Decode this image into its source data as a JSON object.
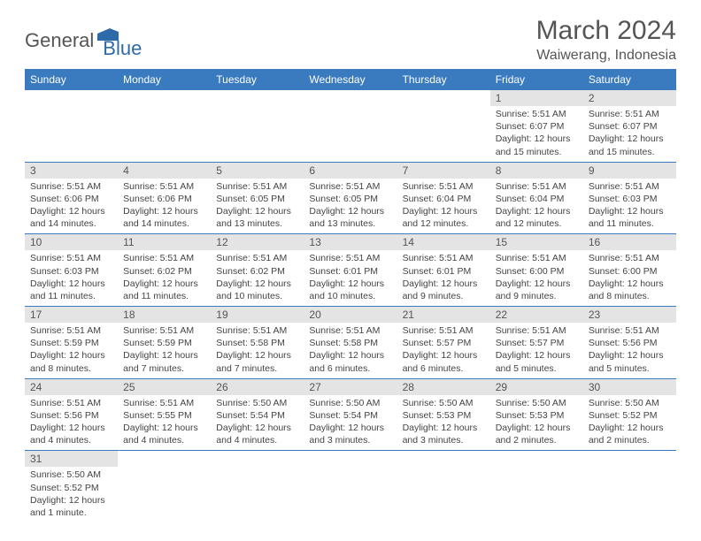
{
  "brand": {
    "general": "General",
    "blue": "Blue",
    "shape_color": "#2f6aa8"
  },
  "title": "March 2024",
  "location": "Waiwerang, Indonesia",
  "colors": {
    "header_bg": "#3a7bbf",
    "header_text": "#ffffff",
    "daynum_bg": "#e4e4e4",
    "row_border": "#3a7bbf",
    "page_bg": "#ffffff",
    "body_text": "#444444",
    "title_text": "#555555"
  },
  "weekdays": [
    "Sunday",
    "Monday",
    "Tuesday",
    "Wednesday",
    "Thursday",
    "Friday",
    "Saturday"
  ],
  "weeks": [
    [
      null,
      null,
      null,
      null,
      null,
      {
        "n": "1",
        "sr": "Sunrise: 5:51 AM",
        "ss": "Sunset: 6:07 PM",
        "dl1": "Daylight: 12 hours",
        "dl2": "and 15 minutes."
      },
      {
        "n": "2",
        "sr": "Sunrise: 5:51 AM",
        "ss": "Sunset: 6:07 PM",
        "dl1": "Daylight: 12 hours",
        "dl2": "and 15 minutes."
      }
    ],
    [
      {
        "n": "3",
        "sr": "Sunrise: 5:51 AM",
        "ss": "Sunset: 6:06 PM",
        "dl1": "Daylight: 12 hours",
        "dl2": "and 14 minutes."
      },
      {
        "n": "4",
        "sr": "Sunrise: 5:51 AM",
        "ss": "Sunset: 6:06 PM",
        "dl1": "Daylight: 12 hours",
        "dl2": "and 14 minutes."
      },
      {
        "n": "5",
        "sr": "Sunrise: 5:51 AM",
        "ss": "Sunset: 6:05 PM",
        "dl1": "Daylight: 12 hours",
        "dl2": "and 13 minutes."
      },
      {
        "n": "6",
        "sr": "Sunrise: 5:51 AM",
        "ss": "Sunset: 6:05 PM",
        "dl1": "Daylight: 12 hours",
        "dl2": "and 13 minutes."
      },
      {
        "n": "7",
        "sr": "Sunrise: 5:51 AM",
        "ss": "Sunset: 6:04 PM",
        "dl1": "Daylight: 12 hours",
        "dl2": "and 12 minutes."
      },
      {
        "n": "8",
        "sr": "Sunrise: 5:51 AM",
        "ss": "Sunset: 6:04 PM",
        "dl1": "Daylight: 12 hours",
        "dl2": "and 12 minutes."
      },
      {
        "n": "9",
        "sr": "Sunrise: 5:51 AM",
        "ss": "Sunset: 6:03 PM",
        "dl1": "Daylight: 12 hours",
        "dl2": "and 11 minutes."
      }
    ],
    [
      {
        "n": "10",
        "sr": "Sunrise: 5:51 AM",
        "ss": "Sunset: 6:03 PM",
        "dl1": "Daylight: 12 hours",
        "dl2": "and 11 minutes."
      },
      {
        "n": "11",
        "sr": "Sunrise: 5:51 AM",
        "ss": "Sunset: 6:02 PM",
        "dl1": "Daylight: 12 hours",
        "dl2": "and 11 minutes."
      },
      {
        "n": "12",
        "sr": "Sunrise: 5:51 AM",
        "ss": "Sunset: 6:02 PM",
        "dl1": "Daylight: 12 hours",
        "dl2": "and 10 minutes."
      },
      {
        "n": "13",
        "sr": "Sunrise: 5:51 AM",
        "ss": "Sunset: 6:01 PM",
        "dl1": "Daylight: 12 hours",
        "dl2": "and 10 minutes."
      },
      {
        "n": "14",
        "sr": "Sunrise: 5:51 AM",
        "ss": "Sunset: 6:01 PM",
        "dl1": "Daylight: 12 hours",
        "dl2": "and 9 minutes."
      },
      {
        "n": "15",
        "sr": "Sunrise: 5:51 AM",
        "ss": "Sunset: 6:00 PM",
        "dl1": "Daylight: 12 hours",
        "dl2": "and 9 minutes."
      },
      {
        "n": "16",
        "sr": "Sunrise: 5:51 AM",
        "ss": "Sunset: 6:00 PM",
        "dl1": "Daylight: 12 hours",
        "dl2": "and 8 minutes."
      }
    ],
    [
      {
        "n": "17",
        "sr": "Sunrise: 5:51 AM",
        "ss": "Sunset: 5:59 PM",
        "dl1": "Daylight: 12 hours",
        "dl2": "and 8 minutes."
      },
      {
        "n": "18",
        "sr": "Sunrise: 5:51 AM",
        "ss": "Sunset: 5:59 PM",
        "dl1": "Daylight: 12 hours",
        "dl2": "and 7 minutes."
      },
      {
        "n": "19",
        "sr": "Sunrise: 5:51 AM",
        "ss": "Sunset: 5:58 PM",
        "dl1": "Daylight: 12 hours",
        "dl2": "and 7 minutes."
      },
      {
        "n": "20",
        "sr": "Sunrise: 5:51 AM",
        "ss": "Sunset: 5:58 PM",
        "dl1": "Daylight: 12 hours",
        "dl2": "and 6 minutes."
      },
      {
        "n": "21",
        "sr": "Sunrise: 5:51 AM",
        "ss": "Sunset: 5:57 PM",
        "dl1": "Daylight: 12 hours",
        "dl2": "and 6 minutes."
      },
      {
        "n": "22",
        "sr": "Sunrise: 5:51 AM",
        "ss": "Sunset: 5:57 PM",
        "dl1": "Daylight: 12 hours",
        "dl2": "and 5 minutes."
      },
      {
        "n": "23",
        "sr": "Sunrise: 5:51 AM",
        "ss": "Sunset: 5:56 PM",
        "dl1": "Daylight: 12 hours",
        "dl2": "and 5 minutes."
      }
    ],
    [
      {
        "n": "24",
        "sr": "Sunrise: 5:51 AM",
        "ss": "Sunset: 5:56 PM",
        "dl1": "Daylight: 12 hours",
        "dl2": "and 4 minutes."
      },
      {
        "n": "25",
        "sr": "Sunrise: 5:51 AM",
        "ss": "Sunset: 5:55 PM",
        "dl1": "Daylight: 12 hours",
        "dl2": "and 4 minutes."
      },
      {
        "n": "26",
        "sr": "Sunrise: 5:50 AM",
        "ss": "Sunset: 5:54 PM",
        "dl1": "Daylight: 12 hours",
        "dl2": "and 4 minutes."
      },
      {
        "n": "27",
        "sr": "Sunrise: 5:50 AM",
        "ss": "Sunset: 5:54 PM",
        "dl1": "Daylight: 12 hours",
        "dl2": "and 3 minutes."
      },
      {
        "n": "28",
        "sr": "Sunrise: 5:50 AM",
        "ss": "Sunset: 5:53 PM",
        "dl1": "Daylight: 12 hours",
        "dl2": "and 3 minutes."
      },
      {
        "n": "29",
        "sr": "Sunrise: 5:50 AM",
        "ss": "Sunset: 5:53 PM",
        "dl1": "Daylight: 12 hours",
        "dl2": "and 2 minutes."
      },
      {
        "n": "30",
        "sr": "Sunrise: 5:50 AM",
        "ss": "Sunset: 5:52 PM",
        "dl1": "Daylight: 12 hours",
        "dl2": "and 2 minutes."
      }
    ],
    [
      {
        "n": "31",
        "sr": "Sunrise: 5:50 AM",
        "ss": "Sunset: 5:52 PM",
        "dl1": "Daylight: 12 hours",
        "dl2": "and 1 minute."
      },
      null,
      null,
      null,
      null,
      null,
      null
    ]
  ]
}
